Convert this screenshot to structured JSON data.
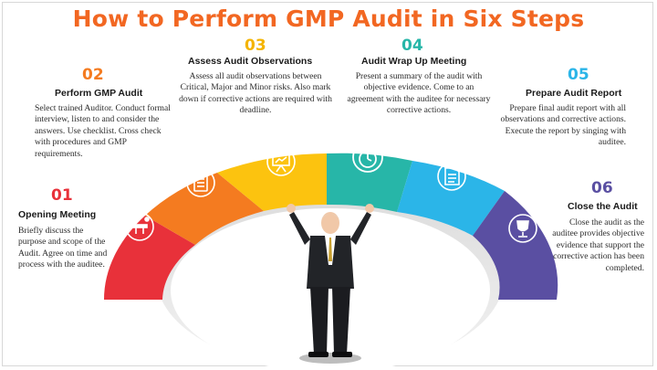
{
  "title": "How to Perform GMP Audit in Six Steps",
  "colors": {
    "title": "#f26722",
    "step1": "#e8313a",
    "step2": "#f47b20",
    "step3": "#fcc30f",
    "step4": "#27b6a8",
    "step5": "#2bb5e8",
    "step6": "#5a4fa2"
  },
  "steps": [
    {
      "number": "01",
      "title": "Opening Meeting",
      "description": "Briefly discuss the purpose and scope of the Audit. Agree on time and process with the auditee.",
      "icon": "meeting-table-icon"
    },
    {
      "number": "02",
      "title": "Perform GMP Audit",
      "description": "Select trained Auditor. Conduct formal interview, listen to and consider the answers. Use checklist. Cross check with procedures and GMP requirements.",
      "icon": "checklist-icon"
    },
    {
      "number": "03",
      "title": "Assess Audit Observations",
      "description": "Assess all audit observations between Critical, Major and Minor risks. Also mark down if corrective actions are required with deadline.",
      "icon": "presentation-board-icon"
    },
    {
      "number": "04",
      "title": "Audit Wrap Up Meeting",
      "description": "Present a summary of the audit with objective evidence. Come to an agreement with the auditee for necessary corrective actions.",
      "icon": "stopwatch-icon"
    },
    {
      "number": "05",
      "title": "Prepare Audit Report",
      "description": "Prepare final audit report with all observations and corrective actions. Execute the report by singing with auditee.",
      "icon": "document-icon"
    },
    {
      "number": "06",
      "title": "Close the Audit",
      "description": "Close the audit as the auditee provides objective evidence that support the corrective action has been completed.",
      "icon": "trophy-icon"
    }
  ]
}
